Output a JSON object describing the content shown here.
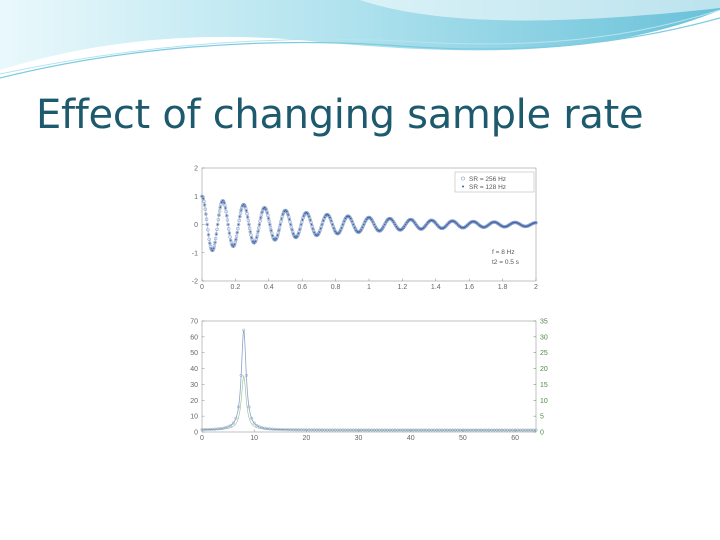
{
  "slide": {
    "title": "Effect of changing sample rate",
    "colors": {
      "title": "#1e5a6e",
      "swoosh_light": "#cdeef5",
      "swoosh_mid": "#6ec6dc",
      "swoosh_dark": "#2a9fbd"
    }
  },
  "chart_data": [
    {
      "type": "scatter",
      "xlim": [
        0,
        2
      ],
      "ylim": [
        -2,
        2
      ],
      "x_ticks": [
        "0",
        "0.2",
        "0.4",
        "0.6",
        "0.8",
        "1",
        "1.2",
        "1.4",
        "1.6",
        "1.8",
        "2"
      ],
      "y_ticks": [
        "-2",
        "-1",
        "0",
        "1",
        "2"
      ],
      "series": [
        {
          "name": "SR = 256 Hz",
          "marker": "circle",
          "color": "#8aa3c8",
          "sample_rate": 256
        },
        {
          "name": "SR = 128 Hz",
          "marker": "dot",
          "color": "#3f5fa8",
          "sample_rate": 128
        }
      ],
      "signal": {
        "frequency_hz": 8,
        "half_life_s": 0.5,
        "amplitude": 1
      },
      "annotations": [
        "f = 8 Hz",
        "t2 = 0.5 s"
      ],
      "legend": "top-right"
    },
    {
      "type": "line",
      "xlim": [
        0,
        64
      ],
      "ylim": [
        0,
        70
      ],
      "ylim_right": [
        0,
        35
      ],
      "x_ticks": [
        "0",
        "10",
        "20",
        "30",
        "40",
        "50",
        "60"
      ],
      "y_ticks": [
        "0",
        "10",
        "20",
        "30",
        "40",
        "50",
        "60",
        "70"
      ],
      "y_ticks_right": [
        "0",
        "5",
        "10",
        "15",
        "20",
        "25",
        "30",
        "35"
      ],
      "series": [
        {
          "name": "SR = 256 Hz",
          "axis": "left",
          "color": "#8aa3c8",
          "peak_x": 8,
          "peak_y": 63
        },
        {
          "name": "SR = 128 Hz",
          "axis": "right",
          "color": "#4c8f44",
          "peak_x": 8,
          "peak_y": 17
        }
      ]
    }
  ]
}
